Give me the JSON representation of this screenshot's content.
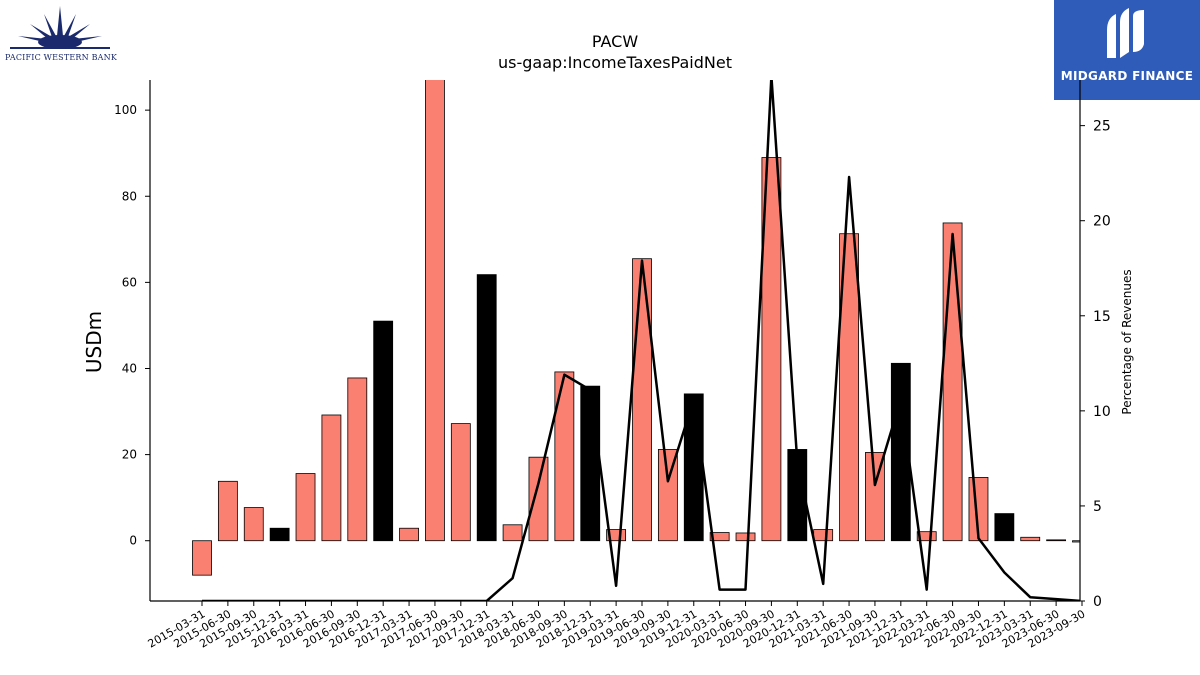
{
  "logos": {
    "left_text": "PACIFIC WESTERN BANK",
    "right_text": "MIDGARD FINANCE"
  },
  "chart_data": {
    "type": "bar",
    "title": "PACW",
    "subtitle": "us-gaap:IncomeTaxesPaidNet",
    "ylabel": "USDm",
    "y2label": "Percentage of Revenues",
    "ylim": [
      -14,
      107
    ],
    "y2lim": [
      0,
      27.4
    ],
    "yticks": [
      0,
      20,
      40,
      60,
      80,
      100
    ],
    "y2ticks": [
      0,
      5,
      10,
      15,
      20,
      25
    ],
    "grid": false,
    "categories": [
      "2015-03-31",
      "2015-06-30",
      "2015-09-30",
      "2015-12-31",
      "2016-03-31",
      "2016-06-30",
      "2016-09-30",
      "2016-12-31",
      "2017-03-31",
      "2017-06-30",
      "2017-09-30",
      "2017-12-31",
      "2018-03-31",
      "2018-06-30",
      "2018-09-30",
      "2018-12-31",
      "2019-03-31",
      "2019-06-30",
      "2019-09-30",
      "2019-12-31",
      "2020-03-31",
      "2020-06-30",
      "2020-09-30",
      "2020-12-31",
      "2021-03-31",
      "2021-06-30",
      "2021-09-30",
      "2021-12-31",
      "2022-03-31",
      "2022-06-30",
      "2022-09-30",
      "2022-12-31",
      "2023-03-31",
      "2023-06-30",
      "2023-09-30"
    ],
    "series": [
      {
        "kind": "bar",
        "values": [
          -8,
          13.8,
          7.7,
          2.9,
          15.6,
          29.2,
          37.8,
          51,
          2.9,
          110,
          27.2,
          61.8,
          3.7,
          19.4,
          39.2,
          35.9,
          2.6,
          65.5,
          21.2,
          34.1,
          1.9,
          1.8,
          89,
          21.2,
          2.6,
          71.3,
          20.5,
          41.2,
          2.1,
          73.8,
          14.7,
          6.3,
          0.8,
          0.2,
          -0.3
        ],
        "year_end_color": "#000000",
        "color": "#fa8072"
      },
      {
        "kind": "line",
        "axis": "right",
        "color": "#000000",
        "values": [
          0,
          0,
          0,
          0,
          0,
          0,
          0,
          0,
          0,
          0,
          0,
          0,
          1.2,
          6.2,
          11.9,
          11.1,
          0.8,
          17.9,
          6.3,
          10.6,
          0.6,
          0.6,
          27.6,
          7.3,
          0.9,
          22.3,
          6.1,
          10.6,
          0.6,
          19.3,
          3.3,
          1.5,
          0.2,
          0.1,
          0
        ]
      }
    ]
  }
}
